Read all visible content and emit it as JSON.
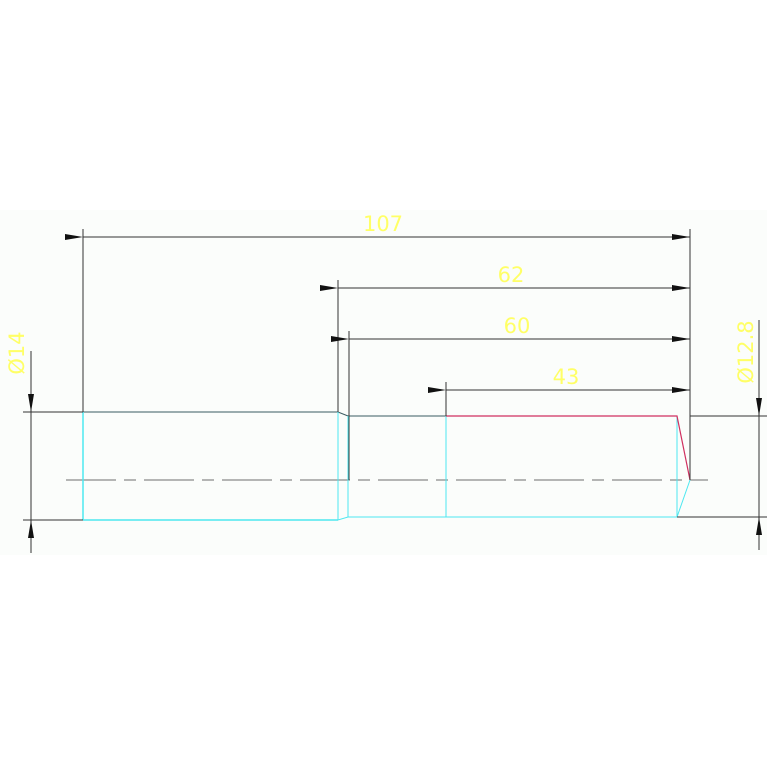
{
  "colors": {
    "dimension_text": "#ffff66",
    "outline": "#3a3a3a",
    "hidden_edge": "#4de8f0",
    "highlight_edge": "#d03060",
    "centerline": "#8a8a8a",
    "sheet": "#fbfdfb"
  },
  "dimensions": {
    "overall_length": "107",
    "length_62": "62",
    "length_60": "60",
    "length_43": "43",
    "diameter_left": "Ø14",
    "diameter_right": "Ø12.8"
  }
}
